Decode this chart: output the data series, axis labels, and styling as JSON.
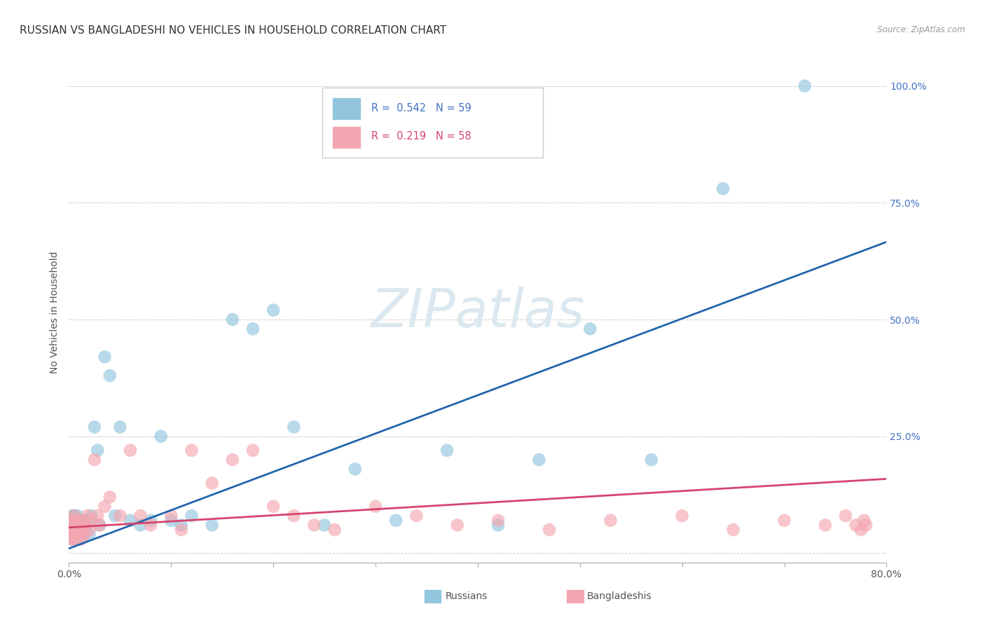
{
  "title": "RUSSIAN VS BANGLADESHI NO VEHICLES IN HOUSEHOLD CORRELATION CHART",
  "source": "Source: ZipAtlas.com",
  "ylabel": "No Vehicles in Household",
  "yticks": [
    0.0,
    0.25,
    0.5,
    0.75,
    1.0
  ],
  "ytick_labels": [
    "",
    "25.0%",
    "50.0%",
    "75.0%",
    "100.0%"
  ],
  "xlim": [
    0.0,
    0.8
  ],
  "ylim": [
    -0.02,
    1.05
  ],
  "russian_color": "#92c5de",
  "bangladeshi_color": "#f4a6b0",
  "regression_russian_color": "#2166ac",
  "regression_bangladeshi_color": "#d6446e",
  "watermark": "ZIPatlas",
  "watermark_color": "#dce8f0",
  "background_color": "#ffffff",
  "title_fontsize": 11,
  "axis_label_fontsize": 10,
  "tick_fontsize": 10,
  "russian_x": [
    0.001,
    0.002,
    0.002,
    0.003,
    0.003,
    0.003,
    0.004,
    0.004,
    0.005,
    0.005,
    0.005,
    0.006,
    0.006,
    0.007,
    0.007,
    0.008,
    0.008,
    0.009,
    0.009,
    0.01,
    0.01,
    0.011,
    0.012,
    0.013,
    0.014,
    0.015,
    0.016,
    0.018,
    0.02,
    0.022,
    0.025,
    0.028,
    0.03,
    0.035,
    0.04,
    0.045,
    0.05,
    0.06,
    0.07,
    0.08,
    0.09,
    0.1,
    0.11,
    0.12,
    0.14,
    0.16,
    0.18,
    0.2,
    0.22,
    0.25,
    0.28,
    0.32,
    0.37,
    0.42,
    0.46,
    0.51,
    0.57,
    0.64,
    0.72
  ],
  "russian_y": [
    0.06,
    0.04,
    0.05,
    0.03,
    0.06,
    0.08,
    0.04,
    0.07,
    0.03,
    0.05,
    0.08,
    0.04,
    0.06,
    0.05,
    0.03,
    0.06,
    0.08,
    0.04,
    0.07,
    0.05,
    0.03,
    0.06,
    0.05,
    0.07,
    0.04,
    0.06,
    0.05,
    0.07,
    0.04,
    0.08,
    0.27,
    0.22,
    0.06,
    0.42,
    0.38,
    0.08,
    0.27,
    0.07,
    0.06,
    0.07,
    0.25,
    0.07,
    0.06,
    0.08,
    0.06,
    0.5,
    0.48,
    0.52,
    0.27,
    0.06,
    0.18,
    0.07,
    0.22,
    0.06,
    0.2,
    0.48,
    0.2,
    0.78,
    1.0
  ],
  "bangladeshi_x": [
    0.001,
    0.002,
    0.002,
    0.003,
    0.004,
    0.004,
    0.005,
    0.005,
    0.006,
    0.007,
    0.007,
    0.008,
    0.008,
    0.009,
    0.01,
    0.011,
    0.012,
    0.013,
    0.014,
    0.015,
    0.016,
    0.018,
    0.02,
    0.022,
    0.025,
    0.028,
    0.03,
    0.035,
    0.04,
    0.05,
    0.06,
    0.07,
    0.08,
    0.1,
    0.11,
    0.12,
    0.14,
    0.16,
    0.18,
    0.2,
    0.22,
    0.24,
    0.26,
    0.3,
    0.34,
    0.38,
    0.42,
    0.47,
    0.53,
    0.6,
    0.65,
    0.7,
    0.74,
    0.76,
    0.77,
    0.775,
    0.778,
    0.78
  ],
  "bangladeshi_y": [
    0.05,
    0.03,
    0.06,
    0.04,
    0.07,
    0.03,
    0.05,
    0.08,
    0.04,
    0.06,
    0.03,
    0.05,
    0.07,
    0.04,
    0.06,
    0.05,
    0.03,
    0.07,
    0.05,
    0.04,
    0.06,
    0.08,
    0.05,
    0.07,
    0.2,
    0.08,
    0.06,
    0.1,
    0.12,
    0.08,
    0.22,
    0.08,
    0.06,
    0.08,
    0.05,
    0.22,
    0.15,
    0.2,
    0.22,
    0.1,
    0.08,
    0.06,
    0.05,
    0.1,
    0.08,
    0.06,
    0.07,
    0.05,
    0.07,
    0.08,
    0.05,
    0.07,
    0.06,
    0.08,
    0.06,
    0.05,
    0.07,
    0.06
  ],
  "regression_russian_slope": 0.82,
  "regression_russian_intercept": 0.01,
  "regression_bangladeshi_slope": 0.13,
  "regression_bangladeshi_intercept": 0.055
}
